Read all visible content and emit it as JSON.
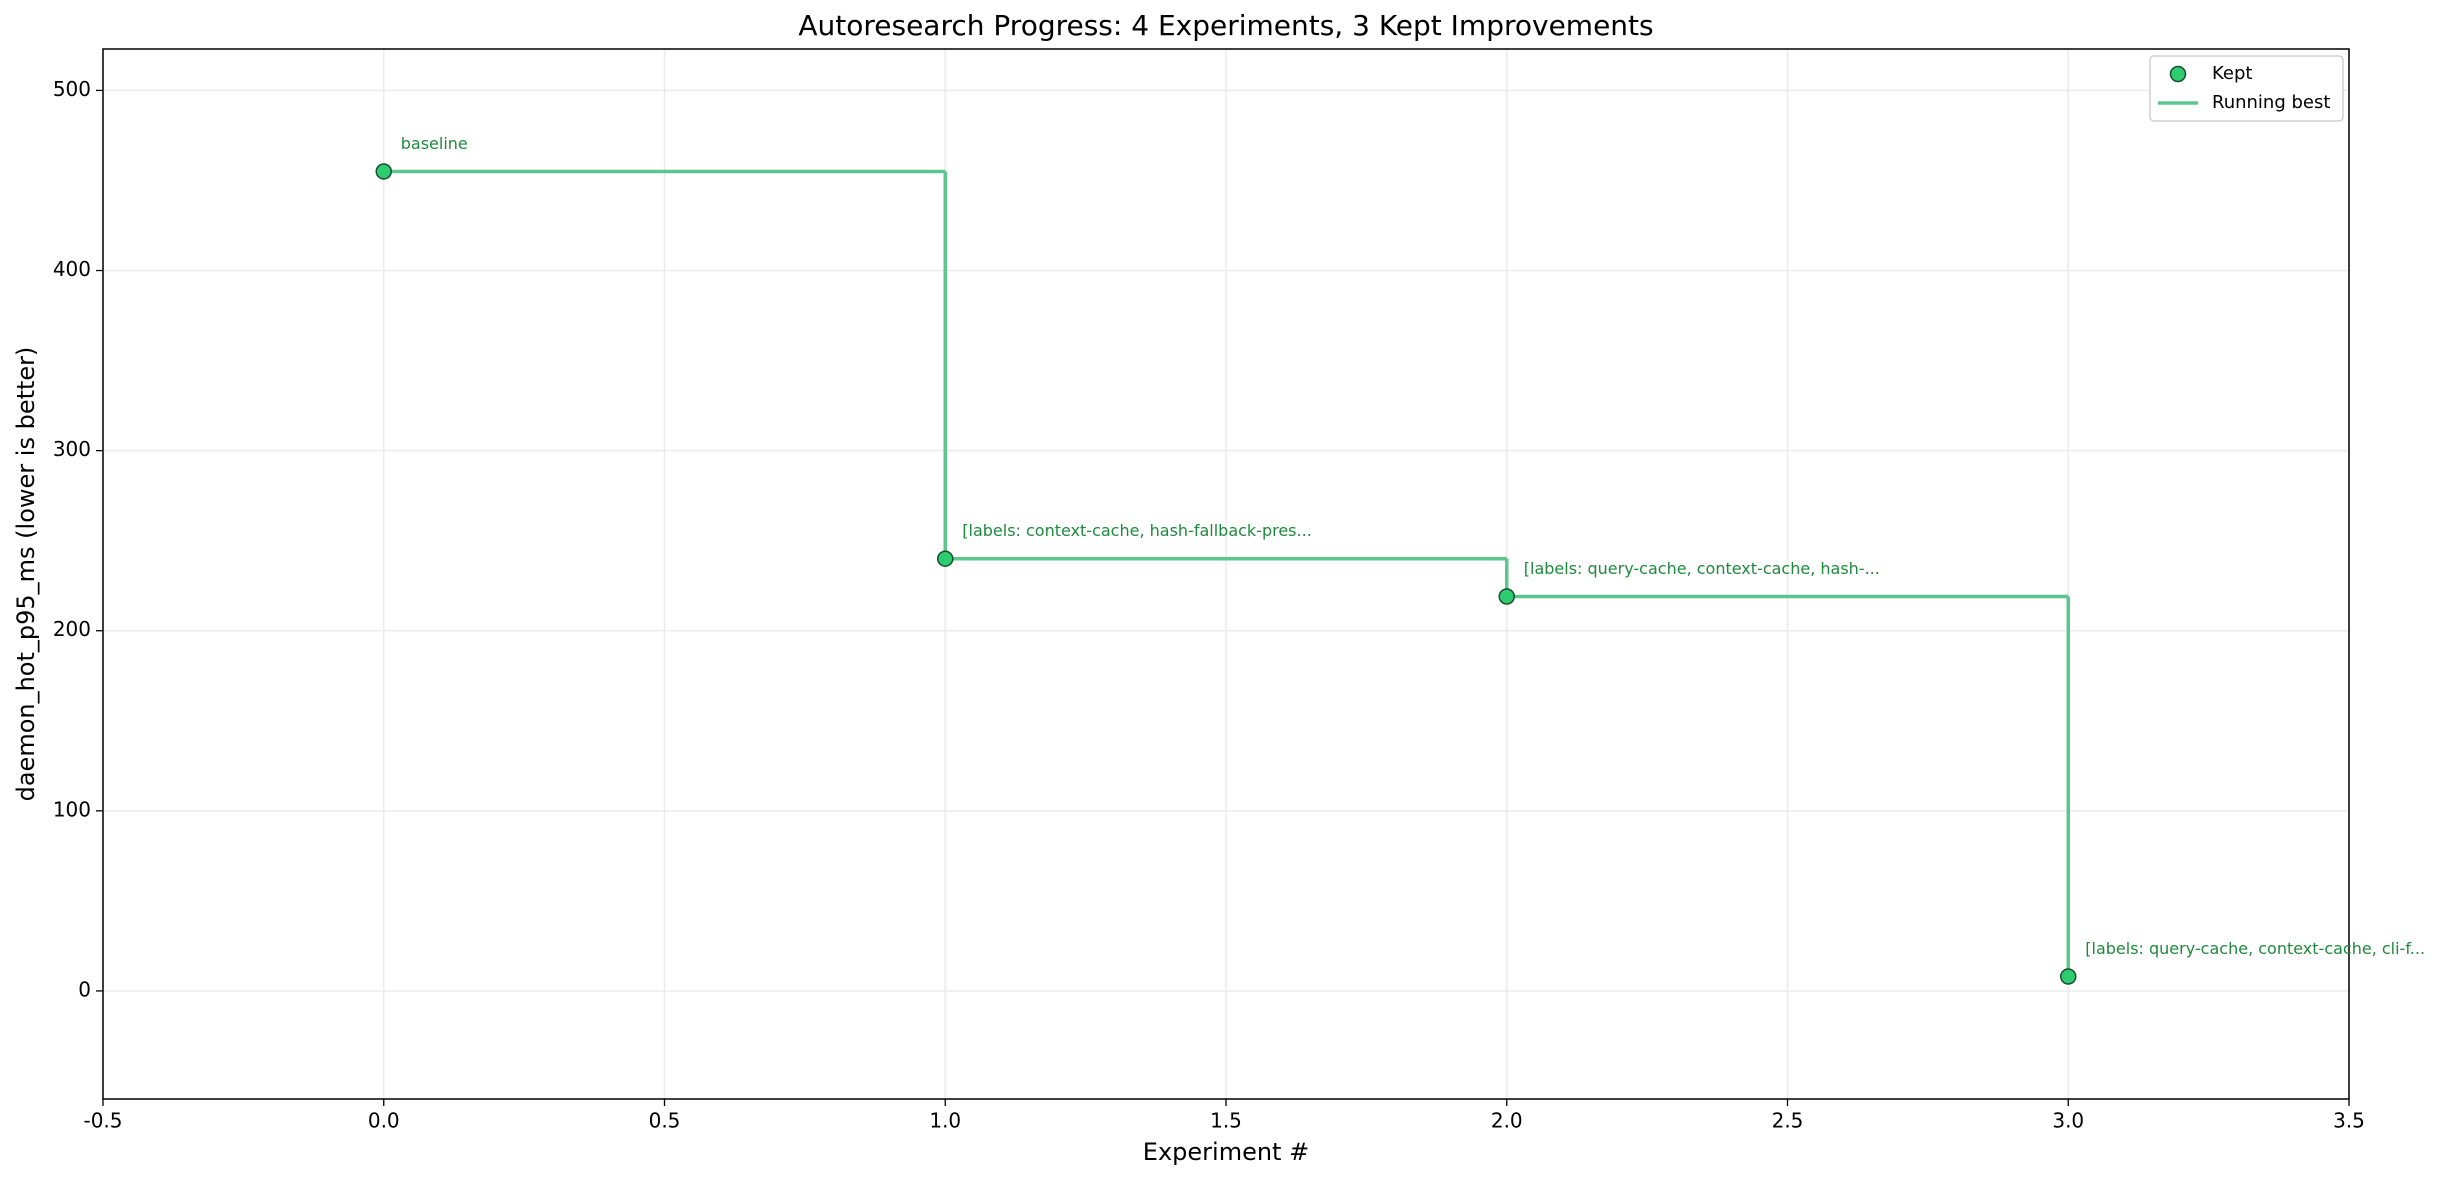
{
  "chart_data": {
    "type": "step",
    "title": "Autoresearch Progress: 4 Experiments, 3 Kept Improvements",
    "x_label": "Experiment #",
    "y_label": "daemon_hot_p95_ms (lower is better)",
    "x": [
      0,
      1,
      2,
      3
    ],
    "series": [
      {
        "name": "Kept",
        "color": "#2ecc71",
        "values": [
          455,
          240,
          219,
          8
        ]
      },
      {
        "name": "Running best",
        "color": "#5cc78c",
        "values": [
          455,
          240,
          219,
          8
        ]
      }
    ],
    "annotations": [
      "baseline",
      "[labels: context-cache, hash-fallback-pres...",
      "[labels: query-cache, context-cache, hash-...",
      "[labels: query-cache, context-cache, cli-f..."
    ],
    "annotation_color": "#1e8a3c",
    "xlim": [
      -0.5,
      3.5
    ],
    "ylim": [
      -60,
      523
    ],
    "xticks": [
      -0.5,
      {
        "value": 0,
        "label": "0.0"
      },
      0.5,
      {
        "value": 1,
        "label": "1.0"
      },
      1.5,
      {
        "value": 2,
        "label": "2.0"
      },
      2.5,
      {
        "value": 3,
        "label": "3.0"
      },
      3.5
    ],
    "yticks": [
      0,
      100,
      200,
      300,
      400,
      500
    ],
    "grid": true,
    "legend": "upper-right"
  }
}
